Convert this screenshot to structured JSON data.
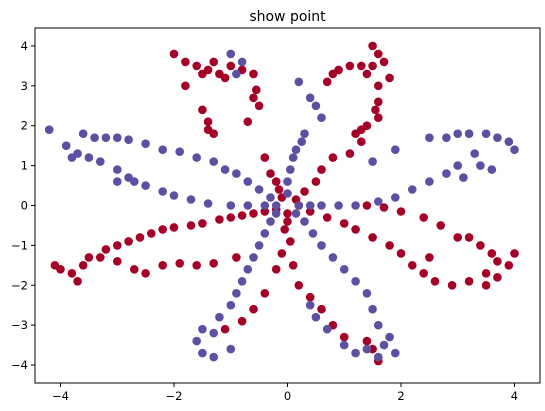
{
  "chart_data": {
    "type": "scatter",
    "title": "show point",
    "xlabel": "",
    "ylabel": "",
    "xlim": [
      -4.45,
      4.45
    ],
    "ylim": [
      -4.45,
      4.45
    ],
    "xticks": [
      -4,
      -2,
      0,
      2,
      4
    ],
    "yticks": [
      -4,
      -3,
      -2,
      -1,
      0,
      1,
      2,
      3,
      4
    ],
    "grid": false,
    "legend": "none",
    "series": [
      {
        "color": "#a50026",
        "points": [
          [
            -2.0,
            3.8
          ],
          [
            -1.8,
            3.6
          ],
          [
            -1.6,
            3.5
          ],
          [
            -1.4,
            3.4
          ],
          [
            -1.5,
            3.3
          ],
          [
            -1.8,
            3.0
          ],
          [
            -1.2,
            3.3
          ],
          [
            -1.1,
            3.2
          ],
          [
            -1.3,
            3.6
          ],
          [
            -1.0,
            3.5
          ],
          [
            -0.8,
            3.4
          ],
          [
            -0.6,
            3.3
          ],
          [
            -0.55,
            2.9
          ],
          [
            -0.6,
            2.7
          ],
          [
            -0.5,
            2.5
          ],
          [
            -0.7,
            2.1
          ],
          [
            -1.5,
            2.4
          ],
          [
            -1.4,
            2.1
          ],
          [
            -1.3,
            1.8
          ],
          [
            -1.4,
            1.9
          ],
          [
            -0.4,
            1.2
          ],
          [
            -0.3,
            0.8
          ],
          [
            -0.2,
            0.6
          ],
          [
            -0.15,
            0.4
          ],
          [
            -0.1,
            0.2
          ],
          [
            1.5,
            4.0
          ],
          [
            1.6,
            3.8
          ],
          [
            1.7,
            3.6
          ],
          [
            1.5,
            3.5
          ],
          [
            1.3,
            3.5
          ],
          [
            1.1,
            3.5
          ],
          [
            0.9,
            3.4
          ],
          [
            0.8,
            3.3
          ],
          [
            0.7,
            3.1
          ],
          [
            1.4,
            3.3
          ],
          [
            1.8,
            3.2
          ],
          [
            1.6,
            3.0
          ],
          [
            1.6,
            2.6
          ],
          [
            1.55,
            2.4
          ],
          [
            1.6,
            2.2
          ],
          [
            1.4,
            2.0
          ],
          [
            1.3,
            1.9
          ],
          [
            1.2,
            1.8
          ],
          [
            1.3,
            1.6
          ],
          [
            1.1,
            1.3
          ],
          [
            0.8,
            1.2
          ],
          [
            0.6,
            0.9
          ],
          [
            0.5,
            0.6
          ],
          [
            0.3,
            0.35
          ],
          [
            0.15,
            0.15
          ],
          [
            -4.0,
            -1.6
          ],
          [
            -3.8,
            -1.7
          ],
          [
            -3.6,
            -1.5
          ],
          [
            -3.5,
            -1.3
          ],
          [
            -3.3,
            -1.3
          ],
          [
            -3.2,
            -1.1
          ],
          [
            -3.0,
            -1.0
          ],
          [
            -2.8,
            -0.9
          ],
          [
            -2.6,
            -0.8
          ],
          [
            -2.4,
            -0.7
          ],
          [
            -2.2,
            -0.6
          ],
          [
            -2.0,
            -0.55
          ],
          [
            -1.7,
            -0.5
          ],
          [
            -1.5,
            -0.45
          ],
          [
            -1.2,
            -0.35
          ],
          [
            -1.0,
            -0.3
          ],
          [
            -0.8,
            -0.25
          ],
          [
            -0.6,
            -0.2
          ],
          [
            -0.4,
            -0.15
          ],
          [
            -0.2,
            -0.1
          ],
          [
            -3.0,
            -1.4
          ],
          [
            -2.7,
            -1.6
          ],
          [
            -2.5,
            -1.7
          ],
          [
            -2.2,
            -1.5
          ],
          [
            -1.9,
            -1.45
          ],
          [
            -1.6,
            -1.5
          ],
          [
            -1.3,
            -1.45
          ],
          [
            -0.9,
            -1.3
          ],
          [
            -3.7,
            -1.9
          ],
          [
            -4.1,
            -1.5
          ],
          [
            3.0,
            -0.8
          ],
          [
            3.2,
            -0.8
          ],
          [
            3.4,
            -1.0
          ],
          [
            3.6,
            -1.2
          ],
          [
            3.7,
            -1.4
          ],
          [
            3.9,
            -1.5
          ],
          [
            4.0,
            -1.2
          ],
          [
            3.5,
            -1.7
          ],
          [
            3.2,
            -1.9
          ],
          [
            2.9,
            -2.0
          ],
          [
            2.6,
            -1.9
          ],
          [
            2.4,
            -1.7
          ],
          [
            2.2,
            -1.5
          ],
          [
            2.0,
            -1.2
          ],
          [
            1.8,
            -1.0
          ],
          [
            1.5,
            -0.8
          ],
          [
            1.2,
            -0.6
          ],
          [
            1.0,
            -0.45
          ],
          [
            0.7,
            -0.3
          ],
          [
            0.4,
            -0.15
          ],
          [
            2.7,
            -0.5
          ],
          [
            2.4,
            -0.3
          ],
          [
            2.0,
            -0.15
          ],
          [
            1.7,
            -0.05
          ],
          [
            1.4,
            0.0
          ],
          [
            3.5,
            -2.0
          ],
          [
            3.7,
            -1.8
          ],
          [
            2.5,
            -1.3
          ],
          [
            1.6,
            -3.9
          ],
          [
            1.5,
            -3.6
          ],
          [
            1.4,
            -3.4
          ],
          [
            1.0,
            -3.3
          ],
          [
            0.8,
            -3.0
          ],
          [
            0.6,
            -2.6
          ],
          [
            0.4,
            -2.3
          ],
          [
            0.2,
            -2.0
          ],
          [
            0.1,
            -1.5
          ],
          [
            0.05,
            -0.9
          ],
          [
            -0.05,
            -0.6
          ],
          [
            -0.1,
            -1.2
          ],
          [
            0.0,
            -0.4
          ],
          [
            -1.1,
            -3.1
          ],
          [
            -0.8,
            -2.9
          ],
          [
            -0.6,
            -2.6
          ],
          [
            -0.4,
            -2.2
          ],
          [
            -0.2,
            -1.6
          ],
          [
            0.0,
            -0.2
          ],
          [
            0.2,
            0.0
          ]
        ]
      },
      {
        "color": "#5e4fa2",
        "points": [
          [
            -1.0,
            3.8
          ],
          [
            -0.8,
            3.6
          ],
          [
            -0.9,
            3.3
          ],
          [
            0.2,
            3.1
          ],
          [
            0.4,
            2.7
          ],
          [
            0.5,
            2.5
          ],
          [
            0.6,
            2.2
          ],
          [
            0.3,
            1.8
          ],
          [
            0.25,
            1.6
          ],
          [
            0.15,
            1.4
          ],
          [
            0.1,
            1.2
          ],
          [
            0.05,
            0.9
          ],
          [
            0.0,
            0.6
          ],
          [
            0.0,
            0.3
          ],
          [
            -4.2,
            1.9
          ],
          [
            -3.9,
            1.5
          ],
          [
            -3.7,
            1.3
          ],
          [
            -3.5,
            1.2
          ],
          [
            -3.3,
            1.1
          ],
          [
            -3.0,
            0.9
          ],
          [
            -2.8,
            0.7
          ],
          [
            -2.5,
            0.5
          ],
          [
            -2.2,
            0.35
          ],
          [
            -2.0,
            0.25
          ],
          [
            -1.7,
            0.15
          ],
          [
            -1.4,
            0.05
          ],
          [
            -1.0,
            0.0
          ],
          [
            -0.7,
            0.0
          ],
          [
            -0.4,
            0.0
          ],
          [
            -0.2,
            0.0
          ],
          [
            -3.8,
            1.2
          ],
          [
            -3.6,
            1.8
          ],
          [
            -3.4,
            1.7
          ],
          [
            -3.2,
            1.7
          ],
          [
            -3.0,
            1.7
          ],
          [
            -2.8,
            1.65
          ],
          [
            -2.5,
            1.55
          ],
          [
            -2.2,
            1.4
          ],
          [
            -1.9,
            1.35
          ],
          [
            -1.6,
            1.2
          ],
          [
            -1.3,
            1.1
          ],
          [
            -1.1,
            0.9
          ],
          [
            -0.9,
            0.8
          ],
          [
            -0.7,
            0.6
          ],
          [
            -0.5,
            0.4
          ],
          [
            -0.3,
            0.2
          ],
          [
            -3.0,
            0.6
          ],
          [
            -2.7,
            0.6
          ],
          [
            2.5,
            1.7
          ],
          [
            2.8,
            1.7
          ],
          [
            3.0,
            1.8
          ],
          [
            3.2,
            1.8
          ],
          [
            3.5,
            1.8
          ],
          [
            3.7,
            1.7
          ],
          [
            3.9,
            1.6
          ],
          [
            4.0,
            1.4
          ],
          [
            3.3,
            1.3
          ],
          [
            3.0,
            1.0
          ],
          [
            2.8,
            0.8
          ],
          [
            2.5,
            0.6
          ],
          [
            2.2,
            0.4
          ],
          [
            1.9,
            0.2
          ],
          [
            1.6,
            0.1
          ],
          [
            1.2,
            0.0
          ],
          [
            0.9,
            0.0
          ],
          [
            0.6,
            0.0
          ],
          [
            0.4,
            0.0
          ],
          [
            0.2,
            0.0
          ],
          [
            3.6,
            0.9
          ],
          [
            3.4,
            1.0
          ],
          [
            3.1,
            0.7
          ],
          [
            1.5,
            1.1
          ],
          [
            1.9,
            1.4
          ],
          [
            -1.0,
            -3.6
          ],
          [
            -1.3,
            -3.8
          ],
          [
            -1.5,
            -3.7
          ],
          [
            -1.6,
            -3.4
          ],
          [
            -1.3,
            -3.2
          ],
          [
            -1.5,
            -3.1
          ],
          [
            -1.2,
            -2.8
          ],
          [
            -1.0,
            -2.5
          ],
          [
            -0.9,
            -2.2
          ],
          [
            -0.8,
            -1.9
          ],
          [
            -0.7,
            -1.6
          ],
          [
            -0.6,
            -1.3
          ],
          [
            -0.5,
            -1.0
          ],
          [
            -0.4,
            -0.7
          ],
          [
            -0.3,
            -0.4
          ],
          [
            -0.2,
            -0.2
          ],
          [
            1.0,
            -3.5
          ],
          [
            1.2,
            -3.7
          ],
          [
            1.4,
            -3.6
          ],
          [
            1.6,
            -3.8
          ],
          [
            1.7,
            -3.5
          ],
          [
            1.8,
            -3.3
          ],
          [
            1.6,
            -3.0
          ],
          [
            1.5,
            -2.6
          ],
          [
            1.4,
            -2.2
          ],
          [
            1.2,
            -1.9
          ],
          [
            1.0,
            -1.6
          ],
          [
            0.8,
            -1.3
          ],
          [
            0.6,
            -1.0
          ],
          [
            0.45,
            -0.7
          ],
          [
            0.3,
            -0.4
          ],
          [
            0.15,
            -0.2
          ],
          [
            0.4,
            -2.5
          ],
          [
            0.5,
            -2.8
          ],
          [
            0.7,
            -3.1
          ],
          [
            1.9,
            -3.7
          ]
        ]
      }
    ]
  }
}
